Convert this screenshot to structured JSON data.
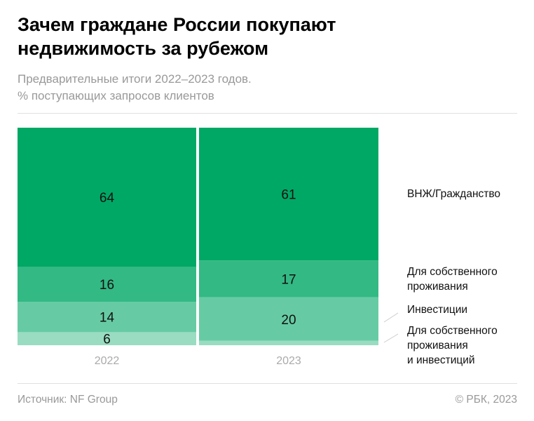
{
  "title": "Зачем граждане России покупают недвижимость за рубежом",
  "subtitle_line1": "Предварительные итоги 2022–2023 годов.",
  "subtitle_line2": "% поступающих запросов клиентов",
  "source": "Источник: NF Group",
  "copyright": "© РБК, 2023",
  "chart_data": {
    "type": "stacked-bar",
    "categories": [
      "2022",
      "2023"
    ],
    "series": [
      {
        "name": "ВНЖ/Гражданство",
        "values": [
          64,
          61
        ],
        "color": "#00a865"
      },
      {
        "name": "Для собственного проживания",
        "values": [
          16,
          17
        ],
        "color": "#33b984"
      },
      {
        "name": "Инвестиции",
        "values": [
          14,
          20
        ],
        "color": "#66cba4"
      },
      {
        "name": "Для собственного проживания и инвестиций",
        "values": [
          6,
          2
        ],
        "color": "#99dcc2"
      }
    ],
    "data_labels": [
      [
        "64",
        "61"
      ],
      [
        "16",
        "17"
      ],
      [
        "14",
        "20"
      ],
      [
        "6",
        ""
      ]
    ],
    "ylim": [
      0,
      100
    ],
    "legend": "right"
  },
  "legend_lines": [
    [
      "ВНЖ/Гражданство"
    ],
    [
      "Для собственного",
      "проживания"
    ],
    [
      "Инвестиции"
    ],
    [
      "Для собственного",
      "проживания",
      "и инвестиций"
    ]
  ]
}
